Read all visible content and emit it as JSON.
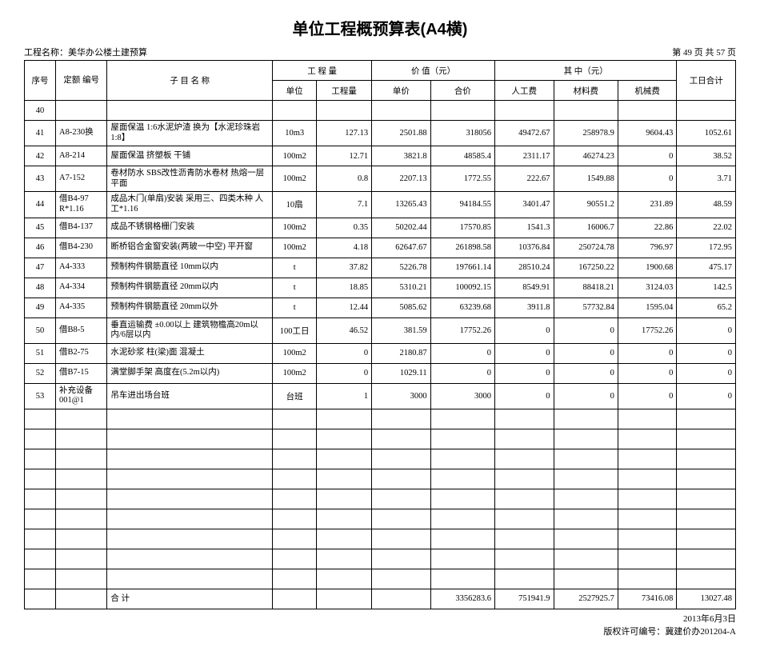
{
  "title": "单位工程概预算表(A4横)",
  "project_label": "工程名称：",
  "project_name": "美华办公楼土建预算",
  "page_info": "第 49 页 共 57 页",
  "headers": {
    "seq": "序号",
    "quota": "定额\n编号",
    "item": "子 目 名 称",
    "qty_group": "工 程 量",
    "unit": "单位",
    "qty": "工程量",
    "value_group": "价 值（元）",
    "unit_price": "单价",
    "total_price": "合价",
    "among_group": "其 中（元）",
    "labor": "人工费",
    "material": "材料费",
    "machine": "机械费",
    "workdays": "工日合计"
  },
  "rows": [
    {
      "seq": "40",
      "code": "",
      "name": "",
      "unit": "",
      "qty": "",
      "up": "",
      "tp": "",
      "lab": "",
      "mat": "",
      "mach": "",
      "wd": ""
    },
    {
      "seq": "41",
      "code": "A8-230换",
      "name": "屋面保温 1:6水泥炉渣 换为【水泥珍珠岩1:8】",
      "unit": "10m3",
      "qty": "127.13",
      "up": "2501.88",
      "tp": "318056",
      "lab": "49472.67",
      "mat": "258978.9",
      "mach": "9604.43",
      "wd": "1052.61"
    },
    {
      "seq": "42",
      "code": "A8-214",
      "name": "屋面保温 挤塑板 干铺",
      "unit": "100m2",
      "qty": "12.71",
      "up": "3821.8",
      "tp": "48585.4",
      "lab": "2311.17",
      "mat": "46274.23",
      "mach": "0",
      "wd": "38.52"
    },
    {
      "seq": "43",
      "code": "A7-152",
      "name": "卷材防水 SBS改性沥青防水卷材 热熔一层 平面",
      "unit": "100m2",
      "qty": "0.8",
      "up": "2207.13",
      "tp": "1772.55",
      "lab": "222.67",
      "mat": "1549.88",
      "mach": "0",
      "wd": "3.71"
    },
    {
      "seq": "44",
      "code": "借B4-97 R*1.16",
      "name": "成品木门(单扇)安装 采用三、四类木种 人工*1.16",
      "unit": "10扇",
      "qty": "7.1",
      "up": "13265.43",
      "tp": "94184.55",
      "lab": "3401.47",
      "mat": "90551.2",
      "mach": "231.89",
      "wd": "48.59"
    },
    {
      "seq": "45",
      "code": "借B4-137",
      "name": "成品不锈钢格栅门安装",
      "unit": "100m2",
      "qty": "0.35",
      "up": "50202.44",
      "tp": "17570.85",
      "lab": "1541.3",
      "mat": "16006.7",
      "mach": "22.86",
      "wd": "22.02"
    },
    {
      "seq": "46",
      "code": "借B4-230",
      "name": "断桥铝合金窗安装(两玻一中空) 平开窗",
      "unit": "100m2",
      "qty": "4.18",
      "up": "62647.67",
      "tp": "261898.58",
      "lab": "10376.84",
      "mat": "250724.78",
      "mach": "796.97",
      "wd": "172.95"
    },
    {
      "seq": "47",
      "code": "A4-333",
      "name": "预制构件钢筋直径 10mm以内",
      "unit": "t",
      "qty": "37.82",
      "up": "5226.78",
      "tp": "197661.14",
      "lab": "28510.24",
      "mat": "167250.22",
      "mach": "1900.68",
      "wd": "475.17"
    },
    {
      "seq": "48",
      "code": "A4-334",
      "name": "预制构件钢筋直径 20mm以内",
      "unit": "t",
      "qty": "18.85",
      "up": "5310.21",
      "tp": "100092.15",
      "lab": "8549.91",
      "mat": "88418.21",
      "mach": "3124.03",
      "wd": "142.5"
    },
    {
      "seq": "49",
      "code": "A4-335",
      "name": "预制构件钢筋直径 20mm以外",
      "unit": "t",
      "qty": "12.44",
      "up": "5085.62",
      "tp": "63239.68",
      "lab": "3911.8",
      "mat": "57732.84",
      "mach": "1595.04",
      "wd": "65.2"
    },
    {
      "seq": "50",
      "code": "借B8-5",
      "name": "垂直运输费 ±0.00以上 建筑物檐高20m以内/6层以内",
      "unit": "100工日",
      "qty": "46.52",
      "up": "381.59",
      "tp": "17752.26",
      "lab": "0",
      "mat": "0",
      "mach": "17752.26",
      "wd": "0"
    },
    {
      "seq": "51",
      "code": "借B2-75",
      "name": "水泥砂浆 柱(梁)面 混凝土",
      "unit": "100m2",
      "qty": "0",
      "up": "2180.87",
      "tp": "0",
      "lab": "0",
      "mat": "0",
      "mach": "0",
      "wd": "0"
    },
    {
      "seq": "52",
      "code": "借B7-15",
      "name": "满堂脚手架 高度在(5.2m以内)",
      "unit": "100m2",
      "qty": "0",
      "up": "1029.11",
      "tp": "0",
      "lab": "0",
      "mat": "0",
      "mach": "0",
      "wd": "0"
    },
    {
      "seq": "53",
      "code": "补充设备001@1",
      "name": "吊车进出场台班",
      "unit": "台班",
      "qty": "1",
      "up": "3000",
      "tp": "3000",
      "lab": "0",
      "mat": "0",
      "mach": "0",
      "wd": "0"
    }
  ],
  "empty_rows": 9,
  "total_row": {
    "label": "合 计",
    "tp": "3356283.6",
    "lab": "751941.9",
    "mat": "2527925.7",
    "mach": "73416.08",
    "wd": "13027.48"
  },
  "footer_date": "2013年6月3日",
  "footer_license": "版权许可编号：冀建价办201204-A"
}
